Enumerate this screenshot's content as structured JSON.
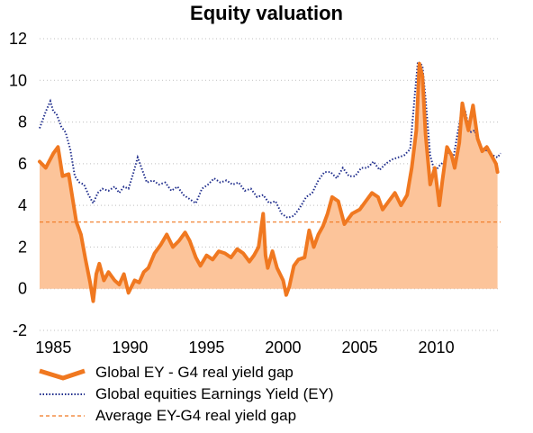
{
  "chart_data": {
    "type": "line",
    "title": "Equity valuation",
    "xlabel": "",
    "ylabel": "",
    "xlim": [
      1984.1,
      2014.2
    ],
    "ylim": [
      -2,
      12
    ],
    "yticks": [
      -2,
      0,
      2,
      4,
      6,
      8,
      10,
      12
    ],
    "xticks": [
      1985,
      1990,
      1995,
      2000,
      2005,
      2010
    ],
    "grid": "horizontal-dotted",
    "legend_position": "bottom",
    "series": [
      {
        "name": "Global EY - G4 real yield gap",
        "style": "thick-line-with-area-fill",
        "color": "#F07820",
        "fill": "#FCC49A",
        "x": [
          1984.1,
          1984.5,
          1985.0,
          1985.3,
          1985.6,
          1986.0,
          1986.5,
          1986.8,
          1987.1,
          1987.4,
          1987.6,
          1987.8,
          1988.0,
          1988.3,
          1988.6,
          1989.0,
          1989.3,
          1989.6,
          1989.9,
          1990.1,
          1990.3,
          1990.6,
          1990.9,
          1991.2,
          1991.6,
          1992.0,
          1992.4,
          1992.8,
          1993.2,
          1993.6,
          1993.9,
          1994.3,
          1994.6,
          1995.0,
          1995.4,
          1995.8,
          1996.2,
          1996.6,
          1997.0,
          1997.4,
          1997.8,
          1998.1,
          1998.4,
          1998.7,
          1998.85,
          1999.0,
          1999.3,
          1999.6,
          2000.0,
          2000.2,
          2000.4,
          2000.7,
          2001.0,
          2001.4,
          2001.7,
          2002.0,
          2002.3,
          2002.6,
          2002.9,
          2003.2,
          2003.6,
          2004.0,
          2004.5,
          2005.0,
          2005.4,
          2005.8,
          2006.2,
          2006.5,
          2006.9,
          2007.3,
          2007.7,
          2008.1,
          2008.4,
          2008.7,
          2008.9,
          2009.1,
          2009.3,
          2009.6,
          2009.9,
          2010.2,
          2010.4,
          2010.7,
          2011.0,
          2011.2,
          2011.5,
          2011.7,
          2011.9,
          2012.1,
          2012.4,
          2012.7,
          2013.0,
          2013.3,
          2013.6,
          2013.9,
          2014.0
        ],
        "values": [
          6.1,
          5.8,
          6.5,
          6.8,
          5.4,
          5.5,
          3.2,
          2.6,
          1.4,
          0.3,
          -0.6,
          0.7,
          1.2,
          0.4,
          0.8,
          0.4,
          0.2,
          0.7,
          -0.2,
          0.1,
          0.4,
          0.3,
          0.8,
          1.0,
          1.7,
          2.1,
          2.6,
          2.0,
          2.3,
          2.7,
          2.3,
          1.5,
          1.1,
          1.6,
          1.4,
          1.8,
          1.7,
          1.5,
          1.9,
          1.7,
          1.3,
          1.6,
          2.0,
          3.6,
          1.6,
          1.0,
          1.8,
          1.0,
          0.4,
          -0.3,
          0.1,
          1.1,
          1.4,
          1.5,
          2.8,
          2.0,
          2.6,
          3.0,
          3.6,
          4.4,
          4.2,
          3.1,
          3.6,
          3.8,
          4.2,
          4.6,
          4.4,
          3.8,
          4.2,
          4.6,
          4.0,
          4.5,
          5.8,
          7.6,
          10.8,
          10.2,
          7.4,
          5.0,
          5.8,
          4.0,
          5.2,
          6.8,
          6.4,
          5.8,
          7.0,
          8.9,
          8.2,
          7.6,
          8.8,
          7.2,
          6.6,
          6.8,
          6.4,
          6.0,
          5.6
        ]
      },
      {
        "name": "Global equities Earnings Yield (EY)",
        "style": "dotted",
        "color": "#1F2D8C",
        "x": [
          1984.1,
          1984.5,
          1984.8,
          1985.0,
          1985.2,
          1985.5,
          1985.8,
          1986.1,
          1986.4,
          1986.7,
          1987.0,
          1987.3,
          1987.6,
          1987.9,
          1988.2,
          1988.6,
          1989.0,
          1989.3,
          1989.6,
          1989.9,
          1990.2,
          1990.5,
          1990.8,
          1991.1,
          1991.5,
          1991.9,
          1992.3,
          1992.7,
          1993.1,
          1993.5,
          1993.9,
          1994.3,
          1994.7,
          1995.1,
          1995.5,
          1995.9,
          1996.3,
          1996.7,
          1997.1,
          1997.5,
          1997.9,
          1998.3,
          1998.7,
          1999.1,
          1999.5,
          1999.9,
          2000.3,
          2000.7,
          2001.1,
          2001.5,
          2001.9,
          2002.3,
          2002.7,
          2003.1,
          2003.5,
          2003.9,
          2004.3,
          2004.7,
          2005.1,
          2005.5,
          2005.9,
          2006.3,
          2006.7,
          2007.1,
          2007.5,
          2007.9,
          2008.3,
          2008.6,
          2008.8,
          2009.1,
          2009.3,
          2009.6,
          2009.9,
          2010.2,
          2010.5,
          2010.8,
          2011.1,
          2011.4,
          2011.7,
          2011.9,
          2012.2,
          2012.5,
          2012.8,
          2013.1,
          2013.4,
          2013.7,
          2014.0,
          2014.2
        ],
        "values": [
          7.7,
          8.5,
          9.0,
          8.5,
          8.4,
          7.8,
          7.5,
          6.7,
          5.4,
          5.1,
          5.0,
          4.5,
          4.1,
          4.6,
          4.8,
          4.7,
          4.9,
          4.6,
          4.9,
          4.8,
          5.5,
          6.3,
          5.7,
          5.1,
          5.2,
          5.0,
          5.1,
          4.7,
          4.9,
          4.5,
          4.3,
          4.1,
          4.8,
          5.0,
          5.3,
          5.1,
          5.2,
          5.0,
          5.1,
          4.7,
          4.8,
          4.4,
          4.5,
          4.1,
          4.2,
          3.6,
          3.4,
          3.5,
          3.9,
          4.4,
          4.6,
          5.2,
          5.6,
          5.6,
          5.3,
          5.8,
          5.4,
          5.4,
          5.8,
          5.8,
          6.1,
          5.7,
          6.0,
          6.2,
          6.3,
          6.4,
          6.7,
          9.3,
          10.9,
          10.7,
          9.1,
          6.4,
          5.6,
          5.9,
          6.1,
          6.6,
          6.2,
          7.5,
          8.7,
          8.5,
          7.5,
          7.6,
          6.9,
          6.7,
          6.6,
          6.4,
          6.3,
          6.5
        ]
      },
      {
        "name": "Average EY-G4 real yield gap",
        "style": "dashed",
        "color": "#F07820",
        "x": [
          1984.1,
          2014.2
        ],
        "values": [
          3.2,
          3.2
        ]
      }
    ]
  }
}
